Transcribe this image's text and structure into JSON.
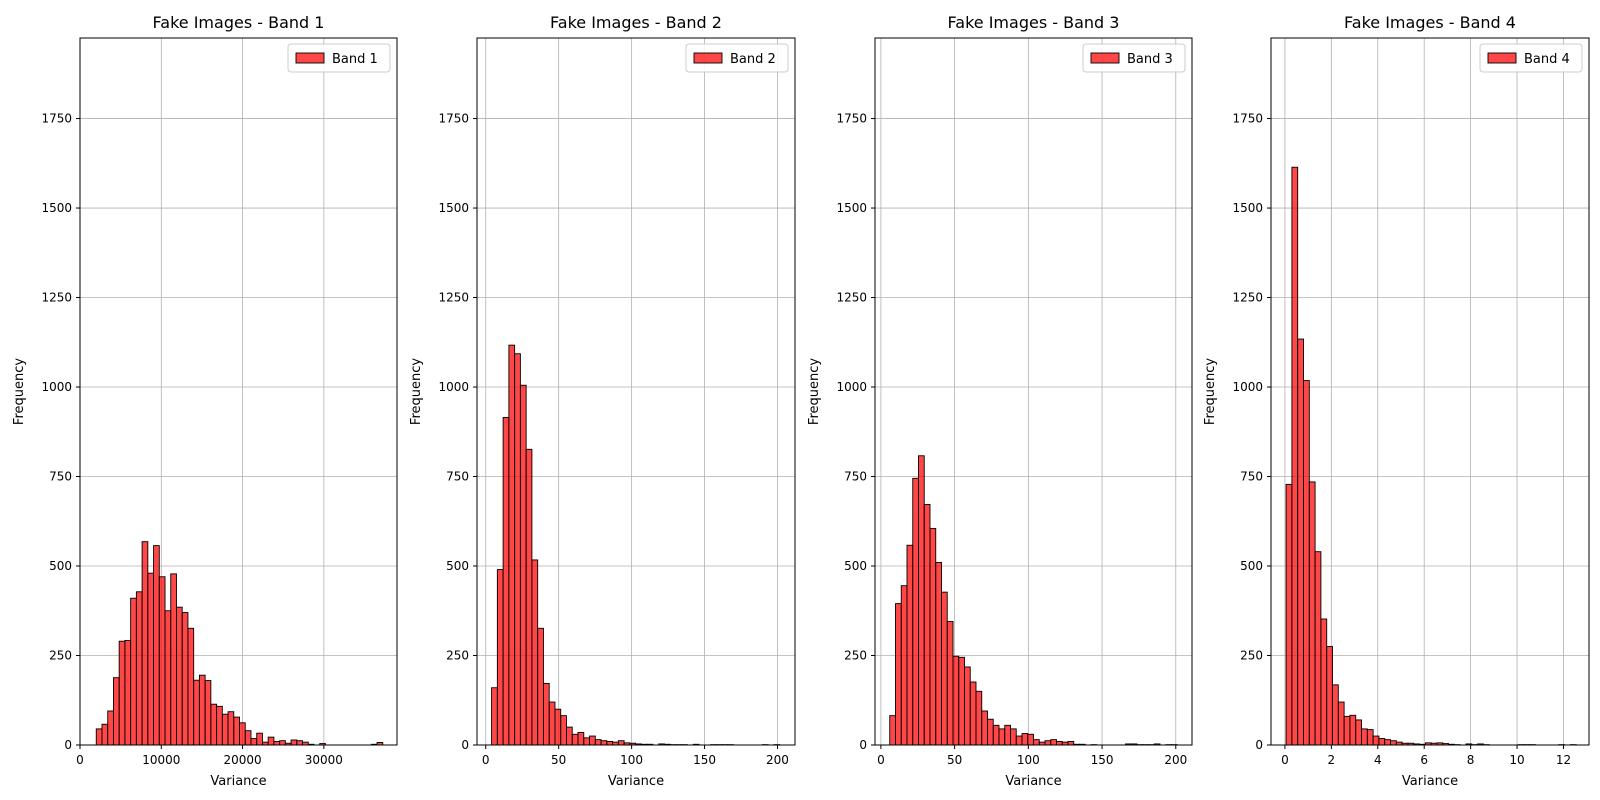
{
  "chart_data": [
    {
      "type": "bar",
      "title": "Fake Images - Band 1",
      "xlabel": "Variance",
      "ylabel": "Frequency",
      "legend": "Band 1",
      "legend_position": "top-right",
      "grid": true,
      "color": "#ff0000",
      "xlim": [
        0,
        39000
      ],
      "ylim": [
        0,
        1975
      ],
      "xticks": [
        0,
        10000,
        20000,
        30000
      ],
      "yticks": [
        0,
        250,
        500,
        750,
        1000,
        1250,
        1500,
        1750
      ],
      "bin_start": 2000,
      "bin_width": 705,
      "counts": [
        45,
        58,
        95,
        188,
        290,
        292,
        410,
        428,
        568,
        480,
        557,
        470,
        375,
        478,
        385,
        370,
        326,
        181,
        195,
        180,
        114,
        108,
        86,
        93,
        78,
        62,
        40,
        18,
        33,
        8,
        22,
        10,
        12,
        5,
        14,
        12,
        8,
        2,
        0,
        4,
        0,
        0,
        0,
        0,
        0,
        0,
        0,
        0,
        2,
        7
      ]
    },
    {
      "type": "bar",
      "title": "Fake Images - Band 2",
      "xlabel": "Variance",
      "ylabel": "Frequency",
      "legend": "Band 2",
      "legend_position": "top-right",
      "grid": true,
      "color": "#ff0000",
      "xlim": [
        -6,
        212
      ],
      "ylim": [
        0,
        1975
      ],
      "xticks": [
        0,
        50,
        100,
        150,
        200
      ],
      "yticks": [
        0,
        250,
        500,
        750,
        1000,
        1250,
        1500,
        1750
      ],
      "bin_start": 4,
      "bin_width": 3.95,
      "counts": [
        160,
        490,
        915,
        1117,
        1093,
        1005,
        826,
        517,
        326,
        172,
        120,
        100,
        82,
        50,
        30,
        35,
        20,
        25,
        15,
        12,
        10,
        8,
        12,
        6,
        5,
        3,
        2,
        2,
        0,
        3,
        2,
        1,
        1,
        1,
        0,
        2,
        0,
        0,
        1,
        1,
        1,
        1,
        0,
        0,
        0,
        0,
        0,
        1,
        0,
        1
      ]
    },
    {
      "type": "bar",
      "title": "Fake Images - Band 3",
      "xlabel": "Variance",
      "ylabel": "Frequency",
      "legend": "Band 3",
      "legend_position": "top-right",
      "grid": true,
      "color": "#ff0000",
      "xlim": [
        -4,
        211
      ],
      "ylim": [
        0,
        1975
      ],
      "xticks": [
        0,
        50,
        100,
        150,
        200
      ],
      "yticks": [
        0,
        250,
        500,
        750,
        1000,
        1250,
        1500,
        1750
      ],
      "bin_start": 6,
      "bin_width": 3.9,
      "counts": [
        82,
        395,
        445,
        558,
        745,
        808,
        672,
        605,
        510,
        427,
        345,
        248,
        245,
        218,
        176,
        150,
        95,
        72,
        55,
        45,
        55,
        45,
        25,
        32,
        30,
        15,
        8,
        12,
        15,
        10,
        8,
        10,
        2,
        2,
        0,
        1,
        0,
        0,
        0,
        0,
        0,
        3,
        3,
        1,
        1,
        1,
        3,
        0,
        1,
        1
      ]
    },
    {
      "type": "bar",
      "title": "Fake Images - Band 4",
      "xlabel": "Variance",
      "ylabel": "Frequency",
      "legend": "Band 4",
      "legend_position": "top-right",
      "grid": true,
      "color": "#ff0000",
      "xlim": [
        -0.6,
        13.1
      ],
      "ylim": [
        0,
        1975
      ],
      "xticks": [
        0,
        2,
        4,
        6,
        8,
        10,
        12
      ],
      "yticks": [
        0,
        250,
        500,
        750,
        1000,
        1250,
        1500,
        1750
      ],
      "bin_start": 0.05,
      "bin_width": 0.25,
      "counts": [
        728,
        1614,
        1134,
        1018,
        735,
        540,
        352,
        275,
        168,
        120,
        80,
        83,
        70,
        45,
        43,
        25,
        18,
        15,
        12,
        8,
        5,
        5,
        3,
        2,
        6,
        5,
        6,
        4,
        2,
        1,
        0,
        3,
        1,
        3,
        1,
        0,
        0,
        0,
        0,
        0,
        1,
        1,
        1,
        0,
        0,
        0,
        0,
        1,
        0,
        1
      ]
    }
  ]
}
